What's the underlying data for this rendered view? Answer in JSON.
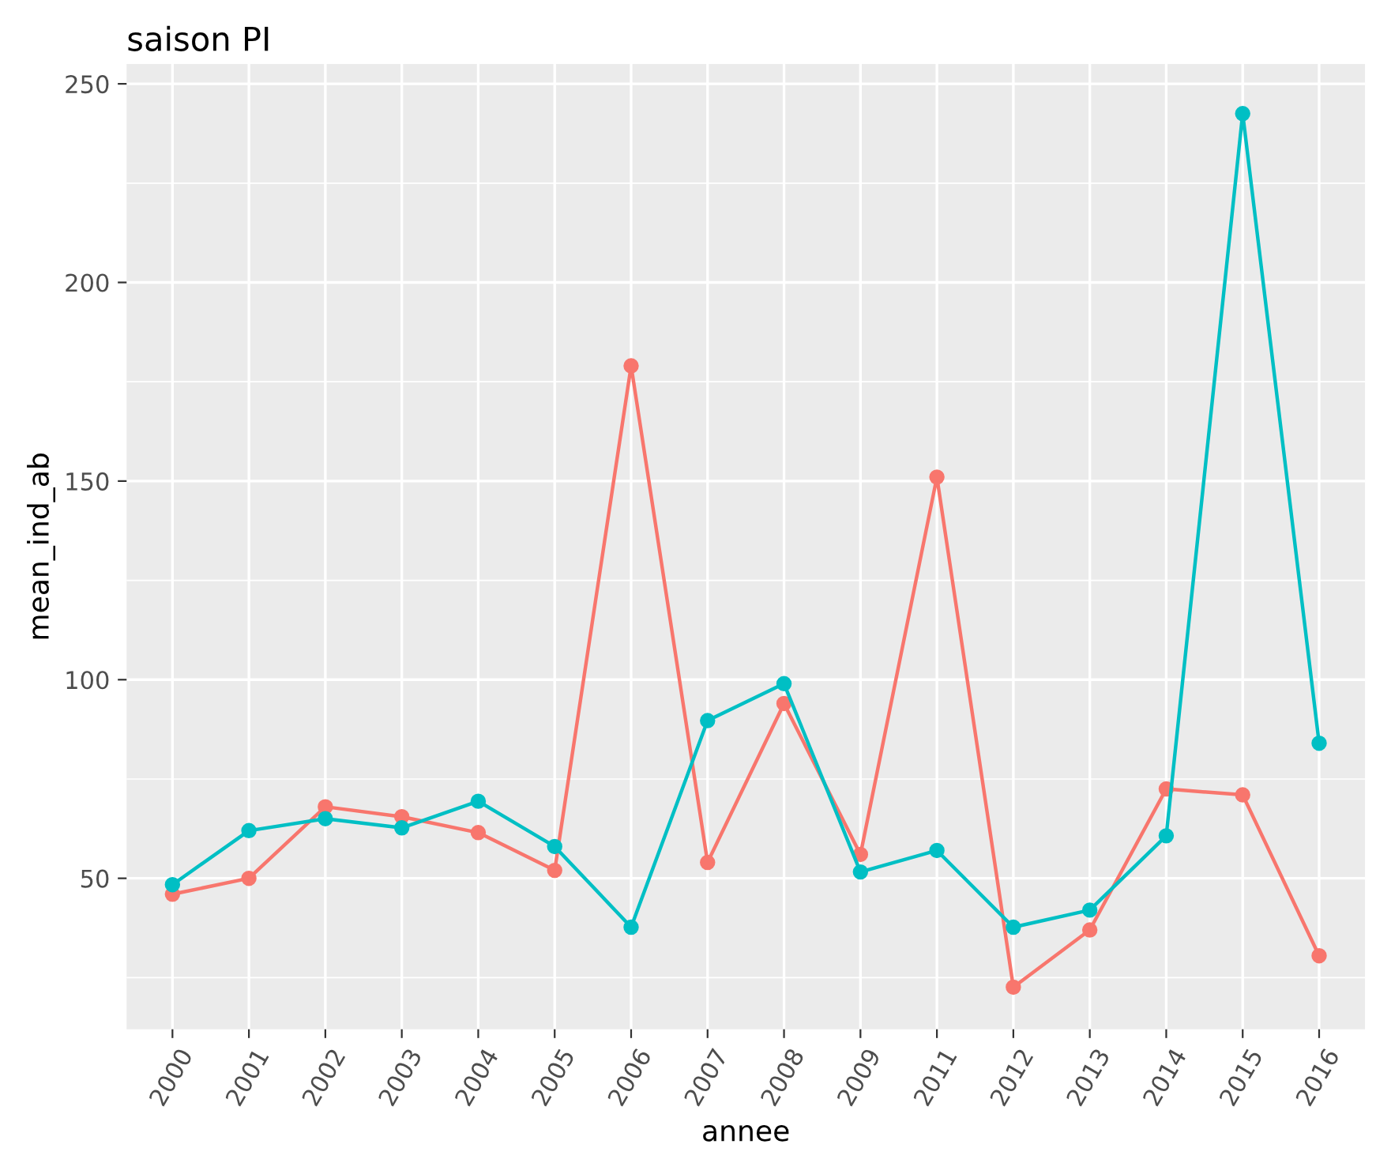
{
  "chart_data": {
    "type": "line",
    "title": "saison PI",
    "xlabel": "annee",
    "ylabel": "mean_ind_ab",
    "categories": [
      "2000",
      "2001",
      "2002",
      "2003",
      "2004",
      "2005",
      "2006",
      "2007",
      "2008",
      "2009",
      "2011",
      "2012",
      "2013",
      "2014",
      "2015",
      "2016"
    ],
    "series": [
      {
        "color": "#f8766d",
        "values": [
          46,
          50,
          68,
          65.5,
          61.5,
          52,
          179,
          54,
          94,
          56,
          151,
          22.6,
          37,
          72.5,
          71,
          30.5
        ]
      },
      {
        "color": "#00bfc4",
        "values": [
          48.4,
          62,
          65,
          62.7,
          69.4,
          58,
          37.7,
          89.7,
          99,
          51.6,
          57,
          37.7,
          42,
          60.7,
          242.5,
          84
        ]
      }
    ],
    "ylim": [
      12,
      255
    ],
    "yticks": [
      50,
      100,
      150,
      200,
      250
    ],
    "grid": true,
    "marker": "circle",
    "line_style": "solid",
    "legend": false
  }
}
